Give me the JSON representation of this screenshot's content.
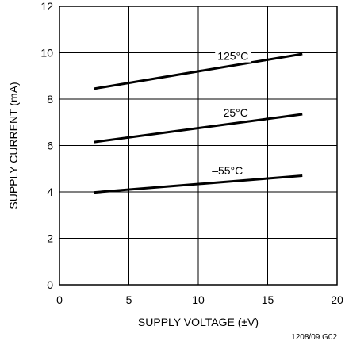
{
  "chart_data": {
    "type": "line",
    "title": "",
    "xlabel": "SUPPLY VOLTAGE (±V)",
    "ylabel": "SUPPLY CURRENT (mA)",
    "xlim": [
      0,
      20
    ],
    "ylim": [
      0,
      12
    ],
    "xticks": [
      0,
      5,
      10,
      15,
      20
    ],
    "yticks": [
      0,
      2,
      4,
      6,
      8,
      10,
      12
    ],
    "grid": true,
    "legend": "none",
    "series": [
      {
        "name": "125°C",
        "x": [
          2.5,
          17.5
        ],
        "y": [
          8.45,
          9.95
        ]
      },
      {
        "name": "25°C",
        "x": [
          2.5,
          17.5
        ],
        "y": [
          6.15,
          7.35
        ]
      },
      {
        "name": "–55°C",
        "x": [
          2.5,
          17.5
        ],
        "y": [
          3.98,
          4.7
        ]
      }
    ]
  },
  "figure_code": "1208/09 G02",
  "colors": {
    "line": "#000000",
    "grid": "#000000",
    "background": "#ffffff"
  }
}
